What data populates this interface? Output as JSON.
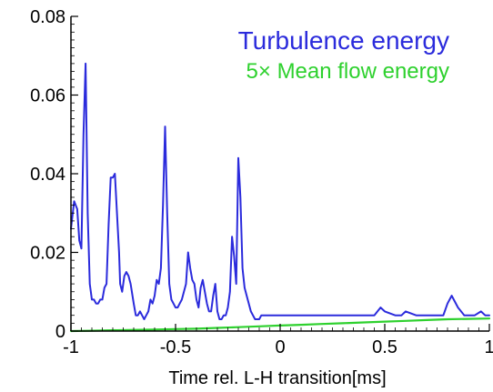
{
  "chart_data": {
    "type": "line",
    "title": "",
    "xlabel": "Time rel. L-H transition[ms]",
    "ylabel": "",
    "xlim": [
      -1,
      1
    ],
    "ylim": [
      0,
      0.08
    ],
    "x_ticks": [
      -1,
      -0.5,
      0,
      0.5,
      1
    ],
    "x_tick_labels": [
      "-1",
      "-0.5",
      "0",
      "0.5",
      "1"
    ],
    "y_ticks": [
      0,
      0.02,
      0.04,
      0.06,
      0.08
    ],
    "y_tick_labels": [
      "0",
      "0.02",
      "0.04",
      "0.06",
      "0.08"
    ],
    "grid": false,
    "legend_position": "top-right",
    "series": [
      {
        "name": "Turbulence energy",
        "color": "#2b2bdc",
        "x": [
          -1.0,
          -0.985,
          -0.97,
          -0.96,
          -0.95,
          -0.94,
          -0.93,
          -0.92,
          -0.91,
          -0.9,
          -0.89,
          -0.88,
          -0.87,
          -0.86,
          -0.85,
          -0.84,
          -0.83,
          -0.82,
          -0.81,
          -0.8,
          -0.79,
          -0.78,
          -0.77,
          -0.765,
          -0.755,
          -0.745,
          -0.735,
          -0.725,
          -0.715,
          -0.7,
          -0.69,
          -0.68,
          -0.67,
          -0.66,
          -0.65,
          -0.64,
          -0.63,
          -0.62,
          -0.61,
          -0.6,
          -0.59,
          -0.58,
          -0.57,
          -0.56,
          -0.55,
          -0.54,
          -0.53,
          -0.52,
          -0.51,
          -0.5,
          -0.49,
          -0.48,
          -0.47,
          -0.46,
          -0.45,
          -0.44,
          -0.43,
          -0.42,
          -0.41,
          -0.4,
          -0.39,
          -0.38,
          -0.37,
          -0.36,
          -0.35,
          -0.34,
          -0.33,
          -0.32,
          -0.31,
          -0.3,
          -0.29,
          -0.28,
          -0.27,
          -0.26,
          -0.25,
          -0.24,
          -0.23,
          -0.22,
          -0.21,
          -0.2,
          -0.19,
          -0.18,
          -0.17,
          -0.16,
          -0.15,
          -0.14,
          -0.13,
          -0.12,
          -0.11,
          -0.1,
          -0.09,
          -0.08,
          -0.07,
          -0.06,
          -0.055,
          -0.05,
          -0.04,
          -0.03,
          -0.02,
          -0.01,
          0.0,
          0.02,
          0.05,
          0.1,
          0.15,
          0.2,
          0.25,
          0.3,
          0.35,
          0.4,
          0.45,
          0.48,
          0.5,
          0.55,
          0.58,
          0.6,
          0.65,
          0.7,
          0.75,
          0.78,
          0.8,
          0.82,
          0.85,
          0.88,
          0.9,
          0.93,
          0.96,
          0.98,
          1.0
        ],
        "values": [
          0.026,
          0.033,
          0.031,
          0.023,
          0.021,
          0.05,
          0.068,
          0.03,
          0.012,
          0.008,
          0.008,
          0.007,
          0.007,
          0.008,
          0.008,
          0.011,
          0.012,
          0.027,
          0.039,
          0.039,
          0.04,
          0.03,
          0.02,
          0.012,
          0.01,
          0.014,
          0.015,
          0.014,
          0.012,
          0.007,
          0.004,
          0.004,
          0.005,
          0.004,
          0.003,
          0.004,
          0.005,
          0.008,
          0.007,
          0.009,
          0.013,
          0.012,
          0.016,
          0.032,
          0.052,
          0.03,
          0.012,
          0.008,
          0.007,
          0.006,
          0.006,
          0.007,
          0.008,
          0.01,
          0.012,
          0.02,
          0.016,
          0.013,
          0.012,
          0.008,
          0.006,
          0.011,
          0.013,
          0.01,
          0.007,
          0.005,
          0.005,
          0.009,
          0.012,
          0.005,
          0.003,
          0.003,
          0.004,
          0.004,
          0.006,
          0.01,
          0.024,
          0.019,
          0.012,
          0.044,
          0.034,
          0.016,
          0.011,
          0.009,
          0.007,
          0.005,
          0.004,
          0.003,
          0.003,
          0.003,
          0.004,
          0.004,
          0.004,
          0.004,
          0.004,
          0.004,
          0.004,
          0.004,
          0.004,
          0.004,
          0.004,
          0.004,
          0.004,
          0.004,
          0.004,
          0.004,
          0.004,
          0.004,
          0.004,
          0.004,
          0.004,
          0.006,
          0.005,
          0.004,
          0.004,
          0.005,
          0.004,
          0.004,
          0.004,
          0.004,
          0.007,
          0.009,
          0.006,
          0.004,
          0.004,
          0.004,
          0.005,
          0.004,
          0.004
        ]
      },
      {
        "name": "5× Mean flow energy",
        "color": "#2ed12e",
        "x": [
          -1.0,
          -0.9,
          -0.8,
          -0.7,
          -0.6,
          -0.5,
          -0.4,
          -0.3,
          -0.2,
          -0.1,
          0.0,
          0.1,
          0.2,
          0.3,
          0.4,
          0.5,
          0.6,
          0.7,
          0.8,
          0.9,
          1.0
        ],
        "values": [
          0.0,
          0.0001,
          0.0002,
          0.0003,
          0.0004,
          0.0005,
          0.0006,
          0.0008,
          0.001,
          0.0012,
          0.0014,
          0.0016,
          0.0018,
          0.002,
          0.0022,
          0.0024,
          0.0026,
          0.0028,
          0.003,
          0.0031,
          0.0032
        ]
      }
    ]
  }
}
